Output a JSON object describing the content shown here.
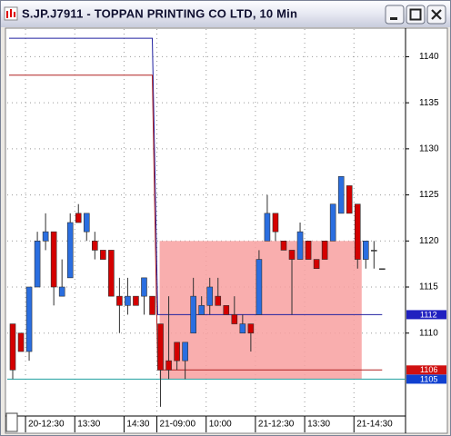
{
  "chart_data": {
    "type": "candlestick",
    "title": "S.JP.J7911 - TOPPAN PRINTING CO LTD, 10 Min",
    "categories": [
      null,
      null,
      "20-12:30",
      null,
      null,
      null,
      null,
      null,
      "13:30",
      null,
      null,
      null,
      null,
      null,
      "14:30",
      null,
      null,
      null,
      "21-09:00",
      null,
      null,
      null,
      null,
      null,
      "10:00",
      null,
      null,
      null,
      null,
      null,
      "21-12:30",
      null,
      null,
      null,
      null,
      null,
      "13:30",
      null,
      null,
      null,
      null,
      null,
      "21-14:30",
      null,
      null,
      null
    ],
    "ohlc": [
      [
        1111,
        1111,
        1105,
        1106
      ],
      [
        1110,
        1110,
        1108,
        1108
      ],
      [
        1108,
        1115,
        1107,
        1115
      ],
      [
        1115,
        1121,
        1115,
        1120
      ],
      [
        1120,
        1123,
        1119,
        1121
      ],
      [
        1121,
        1121,
        1113,
        1115
      ],
      [
        1114,
        1118,
        1114,
        1115
      ],
      [
        1116,
        1123,
        1116,
        1122
      ],
      [
        1123,
        1124,
        1122,
        1122
      ],
      [
        1121,
        1123,
        1120,
        1123
      ],
      [
        1120,
        1121,
        1118,
        1119
      ],
      [
        1119,
        1119,
        1118,
        1118
      ],
      [
        1119,
        1119,
        1114,
        1114
      ],
      [
        1114,
        1116,
        1110,
        1113
      ],
      [
        1113,
        1116,
        1112,
        1114
      ],
      [
        1114,
        1114,
        1113,
        1113
      ],
      [
        1114,
        1116,
        1112,
        1116
      ],
      [
        1114,
        1114,
        1112,
        1112
      ],
      [
        1111,
        1111,
        1102,
        1106
      ],
      [
        1107,
        1114,
        1105,
        1106
      ],
      [
        1109,
        1109,
        1106,
        1107
      ],
      [
        1107,
        1109,
        1105,
        1109
      ],
      [
        1110,
        1116,
        1110,
        1114
      ],
      [
        1112,
        1114,
        1112,
        1113
      ],
      [
        1113,
        1116,
        1112,
        1115
      ],
      [
        1114,
        1116,
        1113,
        1113
      ],
      [
        1113,
        1113,
        1112,
        1112
      ],
      [
        1112,
        1114,
        1111,
        1111
      ],
      [
        1110,
        1112,
        1110,
        1111
      ],
      [
        1111,
        1111,
        1108,
        1110
      ],
      [
        1112,
        1119,
        1112,
        1118
      ],
      [
        1120,
        1125,
        1120,
        1123
      ],
      [
        1123,
        1123,
        1120,
        1121
      ],
      [
        1120,
        1120,
        1119,
        1119
      ],
      [
        1119,
        1119,
        1112,
        1118
      ],
      [
        1118,
        1122,
        1118,
        1121
      ],
      [
        1120,
        1120,
        1118,
        1118
      ],
      [
        1118,
        1118,
        1117,
        1117
      ],
      [
        1120,
        1120,
        1118,
        1118
      ],
      [
        1120,
        1124,
        1120,
        1124
      ],
      [
        1123,
        1127,
        1123,
        1127
      ],
      [
        1126,
        1126,
        1123,
        1123
      ],
      [
        1124,
        1124,
        1117,
        1118
      ],
      [
        1118,
        1120,
        1117,
        1120
      ],
      [
        1119,
        1120,
        1117,
        1119
      ],
      [
        1117,
        1117,
        1117,
        1117
      ]
    ],
    "up_color": "#2a6ee0",
    "down_color": "#d40000",
    "flat_color": "#404040",
    "lines": [
      {
        "color": "#2020a0",
        "values": [
          1142,
          1142,
          1142,
          1142,
          1142,
          1142,
          1142,
          1142,
          1142,
          1142,
          1142,
          1142,
          1142,
          1142,
          1142,
          1142,
          1142,
          1142,
          1112,
          1112,
          1112,
          1112,
          1112,
          1112,
          1112,
          1112,
          1112,
          1112,
          1112,
          1112,
          1112,
          1112,
          1112,
          1112,
          1112,
          1112,
          1112,
          1112,
          1112,
          1112,
          1112,
          1112,
          1112,
          1112,
          1112,
          1112
        ]
      },
      {
        "color": "#b02020",
        "values": [
          1138,
          1138,
          1138,
          1138,
          1138,
          1138,
          1138,
          1138,
          1138,
          1138,
          1138,
          1138,
          1138,
          1138,
          1138,
          1138,
          1138,
          1138,
          1106,
          1106,
          1106,
          1106,
          1106,
          1106,
          1106,
          1106,
          1106,
          1106,
          1106,
          1106,
          1106,
          1106,
          1106,
          1106,
          1106,
          1106,
          1106,
          1106,
          1106,
          1106,
          1106,
          1106,
          1106,
          1106,
          1106,
          1106
        ]
      }
    ],
    "hline": {
      "value": 1105,
      "color": "#20a0a0"
    },
    "zone": {
      "low": 1105,
      "high": 1120,
      "color": "#f8a0a0"
    },
    "price_labels": [
      {
        "value": 1112,
        "color": "#2020c0"
      },
      {
        "value": 1106,
        "color": "#d01010"
      },
      {
        "value": 1105,
        "color": "#1040d0"
      }
    ],
    "ylim": [
      1101,
      1143
    ],
    "yticks": [
      1110,
      1115,
      1120,
      1125,
      1130,
      1135,
      1140
    ],
    "grid": true
  }
}
